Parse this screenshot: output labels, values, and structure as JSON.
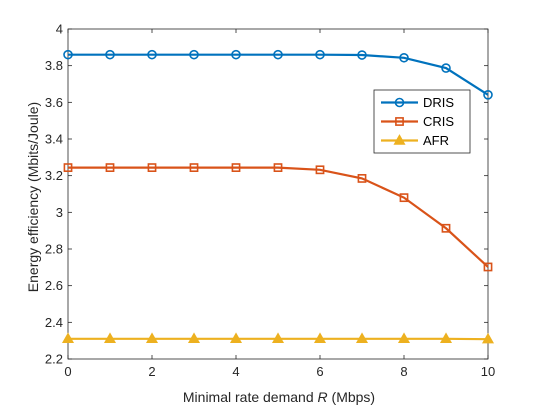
{
  "chart_data": {
    "type": "line",
    "title": "",
    "xlabel": "Minimal rate demand",
    "xlabel_var": "R",
    "xlabel_unit": "(Mbps)",
    "ylabel": "Energy efficiency (Mbits/Joule)",
    "xlim": [
      0,
      10
    ],
    "ylim": [
      2.2,
      4.0
    ],
    "xticks": [
      0,
      2,
      4,
      6,
      8,
      10
    ],
    "yticks": [
      2.2,
      2.4,
      2.6,
      2.8,
      3.0,
      3.2,
      3.4,
      3.6,
      3.8,
      4.0
    ],
    "ytick_labels": [
      "2.2",
      "2.4",
      "2.6",
      "2.8",
      "3",
      "3.2",
      "3.4",
      "3.6",
      "3.8",
      "4"
    ],
    "grid": false,
    "legend_position": "right",
    "x": [
      0,
      1,
      2,
      3,
      4,
      5,
      6,
      7,
      8,
      9,
      10
    ],
    "series": [
      {
        "name": "DRIS",
        "color": "#0072BD",
        "marker": "circle",
        "values": [
          3.86,
          3.86,
          3.86,
          3.86,
          3.86,
          3.86,
          3.86,
          3.858,
          3.843,
          3.787,
          3.641
        ]
      },
      {
        "name": "CRIS",
        "color": "#D95319",
        "marker": "square",
        "values": [
          3.244,
          3.244,
          3.244,
          3.244,
          3.244,
          3.244,
          3.232,
          3.185,
          3.08,
          2.913,
          2.702
        ]
      },
      {
        "name": "AFR",
        "color": "#EDB120",
        "marker": "triangle",
        "values": [
          2.31,
          2.31,
          2.31,
          2.31,
          2.31,
          2.31,
          2.31,
          2.31,
          2.31,
          2.31,
          2.308
        ]
      }
    ]
  }
}
